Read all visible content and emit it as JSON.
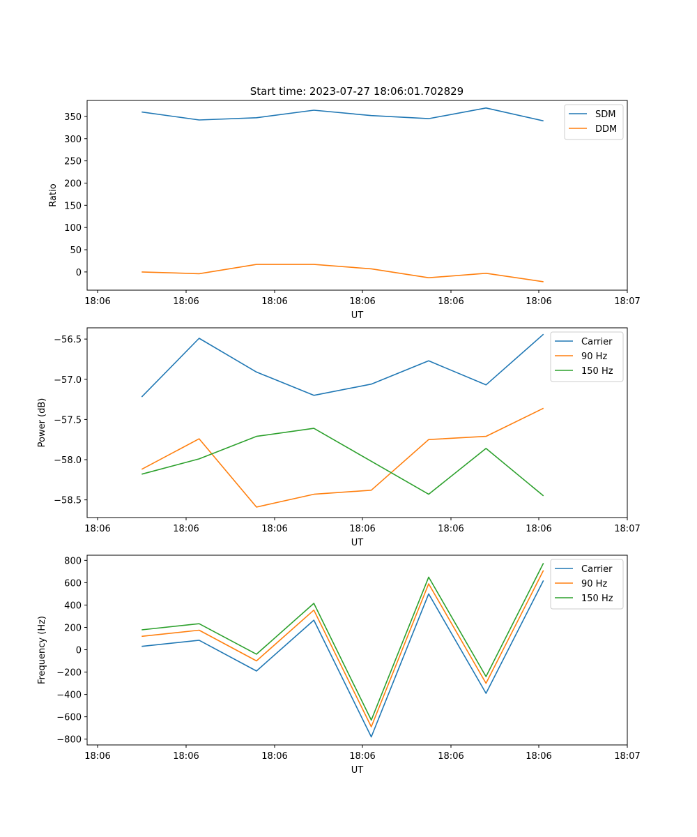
{
  "figure": {
    "title": "Start time: 2023-07-27 18:06:01.702829"
  },
  "chart_data": [
    {
      "type": "line",
      "title": "Start time: 2023-07-27 18:06:01.702829",
      "xlabel": "UT",
      "ylabel": "Ratio",
      "x_ticks": [
        "18:06",
        "18:06",
        "18:06",
        "18:06",
        "18:06",
        "18:06",
        "18:07"
      ],
      "y_ticks": [
        0,
        50,
        100,
        150,
        200,
        250,
        300,
        350
      ],
      "ylim": [
        -41,
        386
      ],
      "xlim": [
        0,
        6
      ],
      "legend": "top-right",
      "series": [
        {
          "name": "SDM",
          "color": "#1f77b4",
          "x": [
            0.5,
            1.15,
            1.8,
            2.45,
            3.1,
            3.75,
            4.4,
            5.05
          ],
          "values": [
            360,
            342,
            347,
            364,
            352,
            345,
            369,
            340
          ]
        },
        {
          "name": "DDM",
          "color": "#ff7f0e",
          "x": [
            0.5,
            1.15,
            1.8,
            2.45,
            3.1,
            3.75,
            4.4,
            5.05
          ],
          "values": [
            0,
            -4,
            17,
            17,
            7,
            -13,
            -3,
            -22
          ]
        }
      ]
    },
    {
      "type": "line",
      "title": "",
      "xlabel": "UT",
      "ylabel": "Power (dB)",
      "x_ticks": [
        "18:06",
        "18:06",
        "18:06",
        "18:06",
        "18:06",
        "18:06",
        "18:07"
      ],
      "y_ticks": [
        "−56.5",
        "−57.0",
        "−57.5",
        "−58.0",
        "−58.5"
      ],
      "y_tick_values": [
        -56.5,
        -57.0,
        -57.5,
        -58.0,
        -58.5
      ],
      "ylim": [
        -58.72,
        -56.36
      ],
      "xlim": [
        0,
        6
      ],
      "legend": "top-right",
      "series": [
        {
          "name": "Carrier",
          "color": "#1f77b4",
          "x": [
            0.5,
            1.15,
            1.8,
            2.45,
            3.1,
            3.75,
            4.4,
            5.05
          ],
          "values": [
            -57.22,
            -56.49,
            -56.91,
            -57.2,
            -57.06,
            -56.77,
            -57.07,
            -56.44
          ]
        },
        {
          "name": "90 Hz",
          "color": "#ff7f0e",
          "x": [
            0.5,
            1.15,
            1.8,
            2.45,
            3.1,
            3.75,
            4.4,
            5.05
          ],
          "values": [
            -58.12,
            -57.74,
            -58.59,
            -58.43,
            -58.38,
            -57.75,
            -57.71,
            -57.36
          ]
        },
        {
          "name": "150 Hz",
          "color": "#2ca02c",
          "x": [
            0.5,
            1.15,
            1.8,
            2.45,
            3.1,
            3.75,
            4.4,
            5.05
          ],
          "values": [
            -58.18,
            -57.99,
            -57.71,
            -57.61,
            -58.02,
            -58.43,
            -57.86,
            -58.45
          ]
        }
      ]
    },
    {
      "type": "line",
      "title": "",
      "xlabel": "UT",
      "ylabel": "Frequency (Hz)",
      "x_ticks": [
        "18:06",
        "18:06",
        "18:06",
        "18:06",
        "18:06",
        "18:06",
        "18:07"
      ],
      "y_ticks": [
        "800",
        "600",
        "400",
        "200",
        "0",
        "−200",
        "−400",
        "−600",
        "−800"
      ],
      "y_tick_values": [
        800,
        600,
        400,
        200,
        0,
        -200,
        -400,
        -600,
        -800
      ],
      "ylim": [
        -852,
        846
      ],
      "xlim": [
        0,
        6
      ],
      "legend": "top-right",
      "series": [
        {
          "name": "Carrier",
          "color": "#1f77b4",
          "x": [
            0.5,
            1.15,
            1.8,
            2.45,
            3.1,
            3.75,
            4.4,
            5.05
          ],
          "values": [
            30,
            85,
            -190,
            265,
            -780,
            500,
            -390,
            620
          ]
        },
        {
          "name": "90 Hz",
          "color": "#ff7f0e",
          "x": [
            0.5,
            1.15,
            1.8,
            2.45,
            3.1,
            3.75,
            4.4,
            5.05
          ],
          "values": [
            120,
            175,
            -100,
            355,
            -690,
            590,
            -300,
            710
          ]
        },
        {
          "name": "150 Hz",
          "color": "#2ca02c",
          "x": [
            0.5,
            1.15,
            1.8,
            2.45,
            3.1,
            3.75,
            4.4,
            5.05
          ],
          "values": [
            178,
            233,
            -40,
            415,
            -630,
            650,
            -240,
            775
          ]
        }
      ]
    }
  ]
}
